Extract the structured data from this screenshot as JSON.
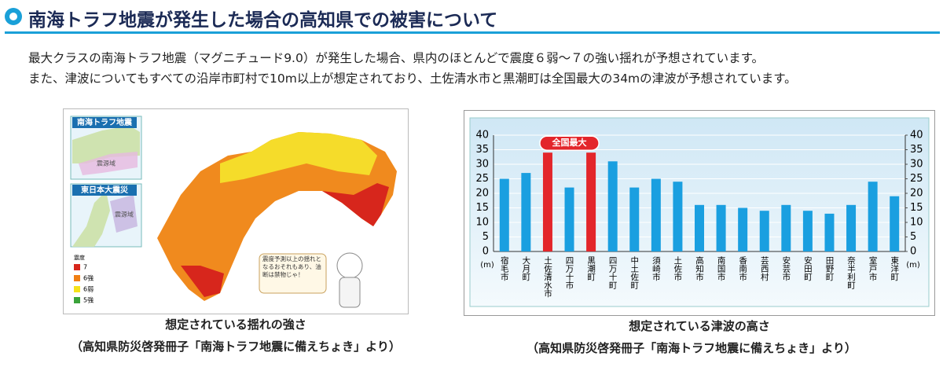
{
  "header": {
    "title": "南海トラフ地震が発生した場合の高知県での被害について"
  },
  "paragraphs": [
    "最大クラスの南海トラフ地震（マグニチュード9.0）が発生した場合、県内のほとんどで震度６弱〜７の強い揺れが予想されています。",
    "また、津波についてもすべての沿岸市町村で10m以上が想定されており、土佐清水市と黒潮町は全国最大の34mの津波が予想されています。"
  ],
  "map": {
    "insets": [
      {
        "title": "南海トラフ地震",
        "label": "震源域"
      },
      {
        "title": "東日本大震災",
        "label": "震源域"
      }
    ],
    "legend": {
      "title": "震度",
      "items": [
        {
          "label": "7",
          "color": "#d7261c"
        },
        {
          "label": "6強",
          "color": "#f07f14"
        },
        {
          "label": "6弱",
          "color": "#f5e21a"
        },
        {
          "label": "5強",
          "color": "#3aa33a"
        }
      ]
    },
    "bubble": "震度予測以上の揺れとなるおそれもあり、油断は禁物じゃ！",
    "caption": [
      "想定されている揺れの強さ",
      "（高知県防災啓発冊子「南海トラフ地震に備えちょき」より）"
    ]
  },
  "chart_data": {
    "type": "bar",
    "categories": [
      "宿毛市",
      "大月町",
      "土佐清水市",
      "四万十市",
      "黒潮町",
      "四万十町",
      "中土佐町",
      "須崎市",
      "土佐市",
      "高知市",
      "南国市",
      "香南市",
      "芸西村",
      "安芸市",
      "安田町",
      "田野町",
      "奈半利町",
      "室戸市",
      "東洋町"
    ],
    "values": [
      25,
      27,
      34,
      22,
      34,
      31,
      22,
      25,
      24,
      16,
      16,
      15,
      14,
      16,
      14,
      13,
      16,
      24,
      19
    ],
    "colors": [
      "#1a9fe0",
      "#1a9fe0",
      "#e3262b",
      "#1a9fe0",
      "#e3262b",
      "#1a9fe0",
      "#1a9fe0",
      "#1a9fe0",
      "#1a9fe0",
      "#1a9fe0",
      "#1a9fe0",
      "#1a9fe0",
      "#1a9fe0",
      "#1a9fe0",
      "#1a9fe0",
      "#1a9fe0",
      "#1a9fe0",
      "#1a9fe0",
      "#1a9fe0"
    ],
    "annotation": "全国最大",
    "y_label": "(m)",
    "y2_label": "(m)",
    "ylim": [
      0,
      40
    ],
    "yticks": [
      0,
      5,
      10,
      15,
      20,
      25,
      30,
      35,
      40
    ],
    "y2lim": [
      0,
      40
    ],
    "y2ticks": [
      0,
      5,
      10,
      15,
      20,
      25,
      30,
      35,
      40
    ],
    "grid": true,
    "caption": [
      "想定されている津波の高さ",
      "（高知県防災啓発冊子「南海トラフ地震に備えちょき」より）"
    ]
  }
}
